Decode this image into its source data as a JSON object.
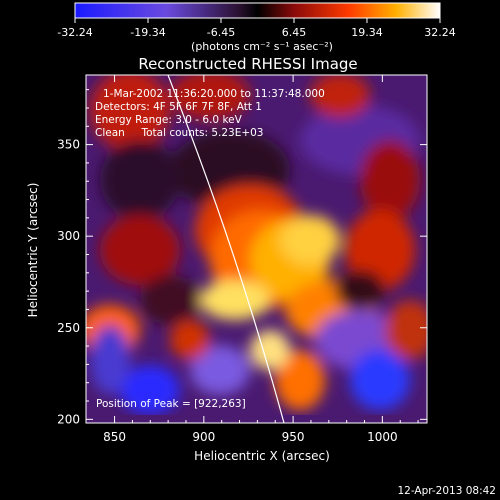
{
  "colorbar": {
    "tick_labels": [
      "-32.24",
      "-19.34",
      "-6.45",
      "6.45",
      "19.34",
      "32.24"
    ],
    "range": [
      -32.24,
      32.24
    ],
    "unit_label": "(photons cm⁻² s⁻¹ asec⁻²)"
  },
  "chart_data": {
    "type": "heatmap",
    "title": "Reconstructed RHESSI Image",
    "xlabel": "Heliocentric X (arcsec)",
    "ylabel": "Heliocentric Y (arcsec)",
    "xlim": [
      834,
      1025
    ],
    "ylim": [
      198,
      388
    ],
    "x_ticks": [
      "850",
      "900",
      "950",
      "1000"
    ],
    "y_ticks": [
      "200",
      "250",
      "300",
      "350"
    ],
    "colormap": "blue-purple-black-red-yellow-white",
    "annotations": [
      "1-Mar-2002 11:36:20.000 to 11:37:48.000",
      "Detectors: 4F 5F 6F 7F 8F, Att 1",
      "Energy Range: 3.0 - 6.0 keV",
      "Clean     Total counts: 5.23E+03"
    ],
    "peak_label": "Position of Peak = [922,263]",
    "peak": [
      922,
      263
    ]
  },
  "footer": {
    "timestamp": "12-Apr-2013 08:42"
  }
}
